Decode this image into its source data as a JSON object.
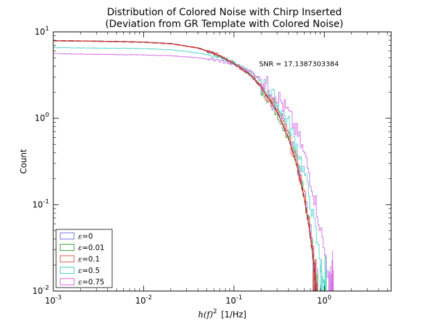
{
  "chart_data": {
    "type": "line",
    "title_lines": [
      "Distribution of Colored Noise with Chirp Inserted",
      "(Deviation from GR Template with Colored Noise)"
    ],
    "xlabel": {
      "math": "h(f)",
      "exp": "2",
      "units": "[1/Hz]"
    },
    "ylabel": "Count",
    "xscale": "log",
    "yscale": "log",
    "xlim": [
      0.001,
      5.5
    ],
    "ylim": [
      0.01,
      10
    ],
    "x_ticks": [
      {
        "value": 0.001,
        "base": "10",
        "exp": "-3"
      },
      {
        "value": 0.01,
        "base": "10",
        "exp": "-2"
      },
      {
        "value": 0.1,
        "base": "10",
        "exp": "-1"
      },
      {
        "value": 1,
        "base": "10",
        "exp": "0"
      }
    ],
    "y_ticks": [
      {
        "value": 0.01,
        "base": "10",
        "exp": "-2"
      },
      {
        "value": 0.1,
        "base": "10",
        "exp": "-1"
      },
      {
        "value": 1,
        "base": "10",
        "exp": "0"
      },
      {
        "value": 10,
        "base": "10",
        "exp": "1"
      }
    ],
    "annotation": {
      "text": "SNR = 17.1387303384",
      "x": 0.19,
      "y": 4.3
    },
    "legend_position": "lower-left",
    "series": [
      {
        "name": "ε=0",
        "symbol": "ε",
        "value": "=0",
        "color": "#7070e0",
        "style": "step",
        "s": 0.3,
        "points": [
          [
            0.001,
            7.9
          ],
          [
            0.003,
            7.8
          ],
          [
            0.01,
            7.6
          ],
          [
            0.02,
            7.3
          ],
          [
            0.04,
            6.5
          ],
          [
            0.07,
            5.3
          ],
          [
            0.1,
            4.3
          ],
          [
            0.15,
            3.2
          ],
          [
            0.2,
            2.3
          ],
          [
            0.3,
            1.2
          ],
          [
            0.4,
            0.6
          ],
          [
            0.5,
            0.28
          ],
          [
            0.6,
            0.12
          ],
          [
            0.7,
            0.045
          ],
          [
            0.75,
            0.025
          ],
          [
            0.8,
            0.012
          ],
          [
            0.81,
            0.01
          ]
        ]
      },
      {
        "name": "ε=0.01",
        "symbol": "ε",
        "value": "=0.01",
        "color": "#40a040",
        "style": "step",
        "s": 0.32,
        "points": [
          [
            0.001,
            7.9
          ],
          [
            0.003,
            7.8
          ],
          [
            0.01,
            7.6
          ],
          [
            0.02,
            7.3
          ],
          [
            0.04,
            6.5
          ],
          [
            0.07,
            5.3
          ],
          [
            0.1,
            4.3
          ],
          [
            0.15,
            3.2
          ],
          [
            0.2,
            2.3
          ],
          [
            0.3,
            1.2
          ],
          [
            0.4,
            0.6
          ],
          [
            0.5,
            0.28
          ],
          [
            0.6,
            0.12
          ],
          [
            0.7,
            0.045
          ],
          [
            0.75,
            0.025
          ],
          [
            0.8,
            0.012
          ],
          [
            0.82,
            0.01
          ]
        ]
      },
      {
        "name": "ε=0.1",
        "symbol": "ε",
        "value": "=0.1",
        "color": "#e05050",
        "style": "step",
        "s": 0.28,
        "points": [
          [
            0.001,
            7.9
          ],
          [
            0.003,
            7.8
          ],
          [
            0.01,
            7.6
          ],
          [
            0.02,
            7.3
          ],
          [
            0.04,
            6.5
          ],
          [
            0.07,
            5.3
          ],
          [
            0.1,
            4.3
          ],
          [
            0.15,
            3.2
          ],
          [
            0.2,
            2.3
          ],
          [
            0.3,
            1.2
          ],
          [
            0.4,
            0.6
          ],
          [
            0.5,
            0.28
          ],
          [
            0.6,
            0.12
          ],
          [
            0.7,
            0.045
          ],
          [
            0.75,
            0.025
          ],
          [
            0.8,
            0.012
          ],
          [
            0.81,
            0.01
          ]
        ]
      },
      {
        "name": "ε=0.5",
        "symbol": "ε",
        "value": "=0.5",
        "color": "#40d0c0",
        "style": "step",
        "s": 0.35,
        "points": [
          [
            0.001,
            6.6
          ],
          [
            0.003,
            6.5
          ],
          [
            0.01,
            6.4
          ],
          [
            0.02,
            6.2
          ],
          [
            0.04,
            5.7
          ],
          [
            0.07,
            5.0
          ],
          [
            0.1,
            4.3
          ],
          [
            0.15,
            3.4
          ],
          [
            0.2,
            2.6
          ],
          [
            0.3,
            1.5
          ],
          [
            0.4,
            0.85
          ],
          [
            0.5,
            0.45
          ],
          [
            0.6,
            0.22
          ],
          [
            0.7,
            0.1
          ],
          [
            0.8,
            0.045
          ],
          [
            0.9,
            0.02
          ],
          [
            1.0,
            0.011
          ],
          [
            1.02,
            0.01
          ]
        ]
      },
      {
        "name": "ε=0.75",
        "symbol": "ε",
        "value": "=0.75",
        "color": "#d060e0",
        "style": "step",
        "s": 0.4,
        "points": [
          [
            0.001,
            5.6
          ],
          [
            0.003,
            5.5
          ],
          [
            0.01,
            5.4
          ],
          [
            0.02,
            5.3
          ],
          [
            0.04,
            5.0
          ],
          [
            0.07,
            4.6
          ],
          [
            0.1,
            4.2
          ],
          [
            0.15,
            3.5
          ],
          [
            0.2,
            2.8
          ],
          [
            0.3,
            1.8
          ],
          [
            0.4,
            1.1
          ],
          [
            0.5,
            0.65
          ],
          [
            0.6,
            0.36
          ],
          [
            0.7,
            0.19
          ],
          [
            0.8,
            0.1
          ],
          [
            0.9,
            0.05
          ],
          [
            1.0,
            0.027
          ],
          [
            1.1,
            0.015
          ],
          [
            1.2,
            0.011
          ],
          [
            1.22,
            0.01
          ]
        ]
      },
      {
        "style": "fit",
        "color": "#000000",
        "dash": "7,4",
        "points": [
          [
            0.001,
            7.9
          ],
          [
            0.003,
            7.8
          ],
          [
            0.01,
            7.6
          ],
          [
            0.02,
            7.3
          ],
          [
            0.04,
            6.5
          ],
          [
            0.07,
            5.3
          ],
          [
            0.1,
            4.3
          ],
          [
            0.15,
            3.2
          ],
          [
            0.2,
            2.3
          ],
          [
            0.3,
            1.2
          ],
          [
            0.4,
            0.6
          ],
          [
            0.5,
            0.28
          ],
          [
            0.6,
            0.12
          ],
          [
            0.7,
            0.045
          ],
          [
            0.75,
            0.025
          ],
          [
            0.8,
            0.012
          ],
          [
            0.81,
            0.01
          ]
        ]
      },
      {
        "style": "fit",
        "color": "#e04040",
        "dash": "",
        "points": [
          [
            0.001,
            7.9
          ],
          [
            0.003,
            7.8
          ],
          [
            0.01,
            7.6
          ],
          [
            0.02,
            7.3
          ],
          [
            0.04,
            6.5
          ],
          [
            0.07,
            5.3
          ],
          [
            0.1,
            4.3
          ],
          [
            0.15,
            3.2
          ],
          [
            0.2,
            2.3
          ],
          [
            0.3,
            1.2
          ],
          [
            0.4,
            0.6
          ],
          [
            0.5,
            0.28
          ],
          [
            0.6,
            0.12
          ],
          [
            0.7,
            0.045
          ],
          [
            0.75,
            0.025
          ],
          [
            0.8,
            0.012
          ],
          [
            0.81,
            0.01
          ]
        ]
      }
    ]
  }
}
